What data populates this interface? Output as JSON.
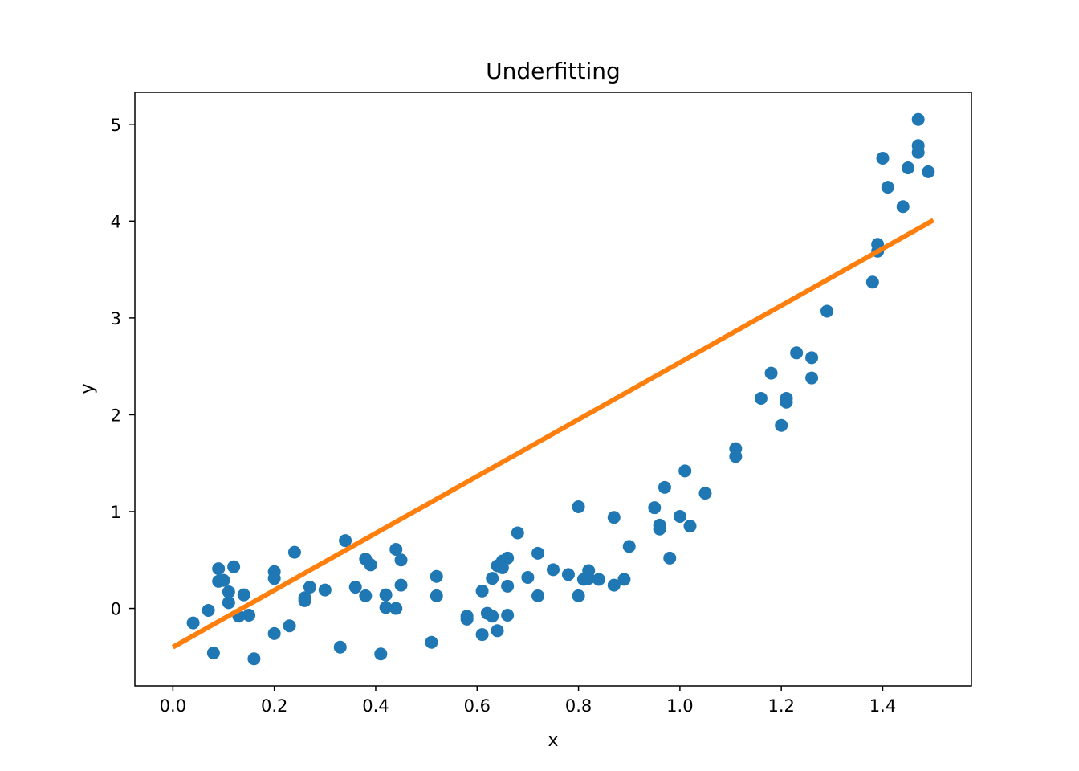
{
  "chart_data": {
    "type": "scatter",
    "title": "Underfitting",
    "xlabel": "x",
    "ylabel": "y",
    "xlim": [
      -0.075,
      1.575
    ],
    "ylim": [
      -0.8,
      5.33
    ],
    "xticks": [
      0.0,
      0.2,
      0.4,
      0.6,
      0.8,
      1.0,
      1.2,
      1.4
    ],
    "xtick_labels": [
      "0.0",
      "0.2",
      "0.4",
      "0.6",
      "0.8",
      "1.0",
      "1.2",
      "1.4"
    ],
    "yticks": [
      0,
      1,
      2,
      3,
      4,
      5
    ],
    "ytick_labels": [
      "0",
      "1",
      "2",
      "3",
      "4",
      "5"
    ],
    "grid": false,
    "legend": "none",
    "series": [
      {
        "type": "scatter",
        "color": "#1f77b4",
        "points": [
          [
            0.04,
            -0.15
          ],
          [
            0.07,
            -0.02
          ],
          [
            0.08,
            -0.46
          ],
          [
            0.09,
            0.28
          ],
          [
            0.09,
            0.41
          ],
          [
            0.1,
            0.29
          ],
          [
            0.11,
            0.06
          ],
          [
            0.11,
            0.17
          ],
          [
            0.12,
            0.43
          ],
          [
            0.13,
            -0.08
          ],
          [
            0.14,
            0.14
          ],
          [
            0.15,
            -0.07
          ],
          [
            0.16,
            -0.52
          ],
          [
            0.2,
            0.38
          ],
          [
            0.2,
            0.31
          ],
          [
            0.2,
            -0.26
          ],
          [
            0.23,
            -0.18
          ],
          [
            0.24,
            0.58
          ],
          [
            0.26,
            0.08
          ],
          [
            0.26,
            0.11
          ],
          [
            0.27,
            0.22
          ],
          [
            0.3,
            0.19
          ],
          [
            0.33,
            -0.4
          ],
          [
            0.34,
            0.7
          ],
          [
            0.36,
            0.22
          ],
          [
            0.38,
            0.13
          ],
          [
            0.38,
            0.51
          ],
          [
            0.39,
            0.45
          ],
          [
            0.41,
            -0.47
          ],
          [
            0.42,
            0.01
          ],
          [
            0.42,
            0.14
          ],
          [
            0.44,
            0.0
          ],
          [
            0.44,
            0.61
          ],
          [
            0.45,
            0.5
          ],
          [
            0.45,
            0.24
          ],
          [
            0.51,
            -0.35
          ],
          [
            0.52,
            0.13
          ],
          [
            0.52,
            0.33
          ],
          [
            0.58,
            -0.08
          ],
          [
            0.58,
            -0.11
          ],
          [
            0.61,
            -0.27
          ],
          [
            0.61,
            0.18
          ],
          [
            0.62,
            -0.05
          ],
          [
            0.63,
            -0.08
          ],
          [
            0.63,
            0.31
          ],
          [
            0.64,
            0.44
          ],
          [
            0.64,
            -0.23
          ],
          [
            0.65,
            0.49
          ],
          [
            0.65,
            0.42
          ],
          [
            0.66,
            0.52
          ],
          [
            0.66,
            0.23
          ],
          [
            0.66,
            -0.07
          ],
          [
            0.68,
            0.78
          ],
          [
            0.7,
            0.32
          ],
          [
            0.72,
            0.57
          ],
          [
            0.72,
            0.13
          ],
          [
            0.75,
            0.4
          ],
          [
            0.78,
            0.35
          ],
          [
            0.8,
            0.13
          ],
          [
            0.8,
            1.05
          ],
          [
            0.81,
            0.3
          ],
          [
            0.82,
            0.31
          ],
          [
            0.82,
            0.39
          ],
          [
            0.84,
            0.3
          ],
          [
            0.87,
            0.24
          ],
          [
            0.87,
            0.94
          ],
          [
            0.89,
            0.3
          ],
          [
            0.9,
            0.64
          ],
          [
            0.95,
            1.04
          ],
          [
            0.96,
            0.82
          ],
          [
            0.96,
            0.86
          ],
          [
            0.97,
            1.25
          ],
          [
            0.98,
            0.52
          ],
          [
            1.0,
            0.95
          ],
          [
            1.01,
            1.42
          ],
          [
            1.02,
            0.85
          ],
          [
            1.05,
            1.19
          ],
          [
            1.11,
            1.65
          ],
          [
            1.11,
            1.57
          ],
          [
            1.16,
            2.17
          ],
          [
            1.18,
            2.43
          ],
          [
            1.2,
            1.89
          ],
          [
            1.21,
            2.13
          ],
          [
            1.21,
            2.17
          ],
          [
            1.23,
            2.64
          ],
          [
            1.26,
            2.38
          ],
          [
            1.26,
            2.59
          ],
          [
            1.29,
            3.07
          ],
          [
            1.38,
            3.37
          ],
          [
            1.39,
            3.76
          ],
          [
            1.39,
            3.69
          ],
          [
            1.4,
            4.65
          ],
          [
            1.41,
            4.35
          ],
          [
            1.44,
            4.15
          ],
          [
            1.45,
            4.55
          ],
          [
            1.47,
            5.05
          ],
          [
            1.47,
            4.78
          ],
          [
            1.47,
            4.71
          ],
          [
            1.49,
            4.51
          ]
        ]
      },
      {
        "type": "line",
        "color": "#ff7f0e",
        "x": [
          0.0,
          1.5
        ],
        "y": [
          -0.4,
          4.01
        ]
      }
    ]
  }
}
